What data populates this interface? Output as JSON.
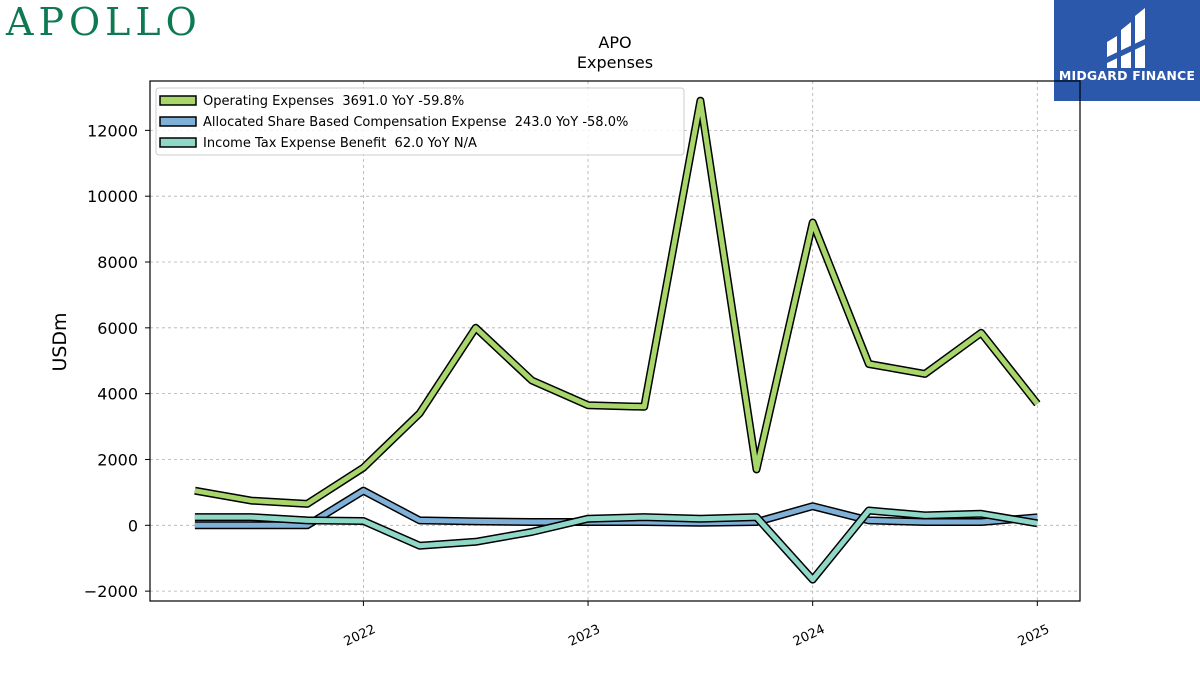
{
  "branding": {
    "left_logo_text": "APOLLO",
    "right_logo_text": "MIDGARD FINANCE",
    "right_logo_bg": "#2b58ab",
    "left_logo_color": "#0e7a52"
  },
  "chart_data": {
    "type": "line",
    "title": "APO",
    "subtitle": "Expenses",
    "xlabel": "",
    "ylabel": "USDm",
    "ylim": [
      -2300,
      13500
    ],
    "xlim": [
      2021.05,
      2025.19
    ],
    "yticks": [
      -2000,
      0,
      2000,
      4000,
      6000,
      8000,
      10000,
      12000
    ],
    "xticks": [
      2022,
      2023,
      2024,
      2025
    ],
    "grid": true,
    "legend_position": "top-left",
    "x": [
      2021.25,
      2021.5,
      2021.75,
      2022.0,
      2022.25,
      2022.5,
      2022.75,
      2023.0,
      2023.25,
      2023.5,
      2023.75,
      2024.0,
      2024.25,
      2024.5,
      2024.75,
      2025.0
    ],
    "series": [
      {
        "name": "Operating Expenses",
        "legend": "Operating Expenses  3691.0 YoY -59.8%",
        "color": "#a8d66a",
        "values": [
          1050,
          750,
          650,
          1750,
          3400,
          6000,
          4400,
          3650,
          3600,
          12900,
          1700,
          9200,
          4900,
          4600,
          5850,
          3691
        ]
      },
      {
        "name": "Allocated Share Based Compensation Expense",
        "legend": "Allocated Share Based Compensation Expense  243.0 YoY -58.0%",
        "color": "#7fb0d8",
        "values": [
          0,
          0,
          0,
          1050,
          150,
          120,
          100,
          100,
          100,
          80,
          100,
          580,
          150,
          100,
          100,
          243
        ]
      },
      {
        "name": "Income Tax Expense Benefit",
        "legend": "Income Tax Expense Benefit  62.0 YoY N/A",
        "color": "#8fd8c8",
        "values": [
          250,
          250,
          150,
          130,
          -620,
          -500,
          -200,
          200,
          250,
          200,
          250,
          -1650,
          450,
          300,
          350,
          62
        ]
      }
    ]
  }
}
